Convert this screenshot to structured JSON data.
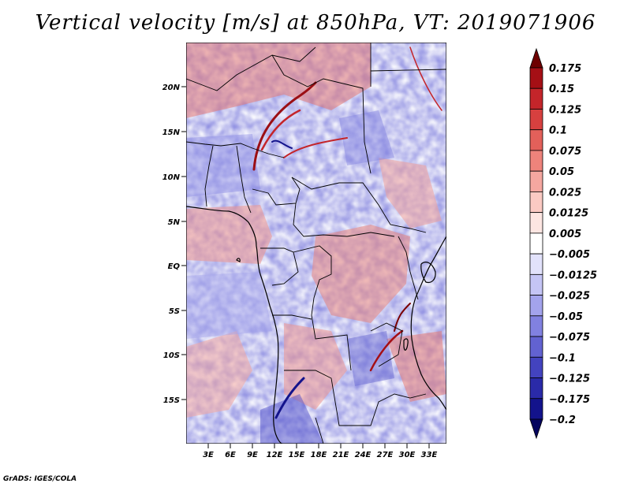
{
  "title": "Vertical velocity [m/s] at 850hPa, VT: 2019071906",
  "credit": "GrADS: IGES/COLA",
  "map": {
    "lat_labels": [
      "20N",
      "15N",
      "10N",
      "5N",
      "EQ",
      "5S",
      "10S",
      "15S"
    ],
    "lon_labels": [
      "3E",
      "6E",
      "9E",
      "12E",
      "15E",
      "18E",
      "21E",
      "24E",
      "27E",
      "30E",
      "33E"
    ]
  },
  "colorbar": {
    "labels": [
      "0.175",
      "0.15",
      "0.125",
      "0.1",
      "0.075",
      "0.05",
      "0.025",
      "0.0125",
      "0.005",
      "-0.005",
      "-0.0125",
      "-0.025",
      "-0.05",
      "-0.075",
      "-0.1",
      "-0.125",
      "-0.175",
      "-0.2"
    ],
    "colors": [
      "#6e0000",
      "#a50f15",
      "#c4252a",
      "#d7403f",
      "#e3605a",
      "#ee837b",
      "#f5a7a0",
      "#fbcac3",
      "#fde6e2",
      "#ffffff",
      "#e2e2fb",
      "#c5c5f5",
      "#a3a3ec",
      "#8181e0",
      "#6262d1",
      "#4343bf",
      "#2a2aa8",
      "#13138c",
      "#05055e"
    ]
  }
}
